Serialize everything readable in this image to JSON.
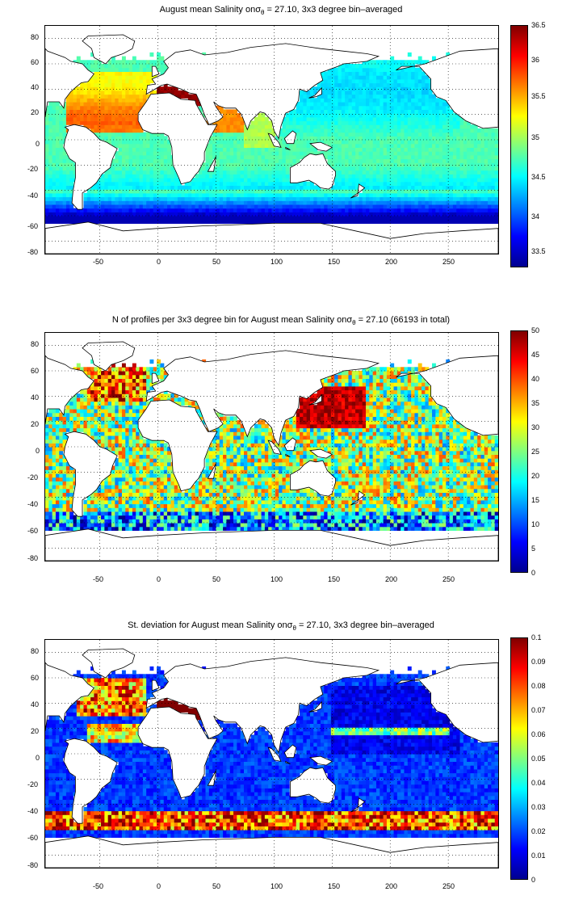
{
  "figure": {
    "colormap": "jet",
    "land_color": "#ffffff",
    "coast_color": "#000000",
    "panels": [
      {
        "id": "mean",
        "title_pre": "August mean Salinity on",
        "title_sym": "σ",
        "title_sub": "θ",
        "title_post": " = 27.10, 3x3 degree bin–averaged",
        "x_ticks": [
          "-50",
          "0",
          "50",
          "100",
          "150",
          "200",
          "250"
        ],
        "y_ticks": [
          "80",
          "60",
          "40",
          "20",
          "0",
          "-20",
          "-40",
          "-60",
          "-80"
        ],
        "cbar_ticks": [
          "36.5",
          "36",
          "35.5",
          "35",
          "34.5",
          "34",
          "33.5"
        ]
      },
      {
        "id": "count",
        "title_pre": "N of profiles per 3x3 degree bin for August mean Salinity on",
        "title_sym": "σ",
        "title_sub": "θ",
        "title_post": " = 27.10 (66193 in total)",
        "x_ticks": [
          "-50",
          "0",
          "50",
          "100",
          "150",
          "200",
          "250"
        ],
        "y_ticks": [
          "80",
          "60",
          "40",
          "20",
          "0",
          "-20",
          "-40",
          "-60",
          "-80"
        ],
        "cbar_ticks": [
          "50",
          "45",
          "40",
          "35",
          "30",
          "25",
          "20",
          "15",
          "10",
          "5",
          "0"
        ]
      },
      {
        "id": "std",
        "title_pre": "St. deviation for August mean Salinity on",
        "title_sym": "σ",
        "title_sub": "θ",
        "title_post": " = 27.10, 3x3 degree bin–averaged",
        "x_ticks": [
          "-50",
          "0",
          "50",
          "100",
          "150",
          "200",
          "250"
        ],
        "y_ticks": [
          "80",
          "60",
          "40",
          "20",
          "0",
          "-20",
          "-40",
          "-60",
          "-80"
        ],
        "cbar_ticks": [
          "0.1",
          "0.09",
          "0.08",
          "0.07",
          "0.06",
          "0.05",
          "0.04",
          "0.03",
          "0.02",
          "0.01",
          "0"
        ]
      }
    ]
  }
}
